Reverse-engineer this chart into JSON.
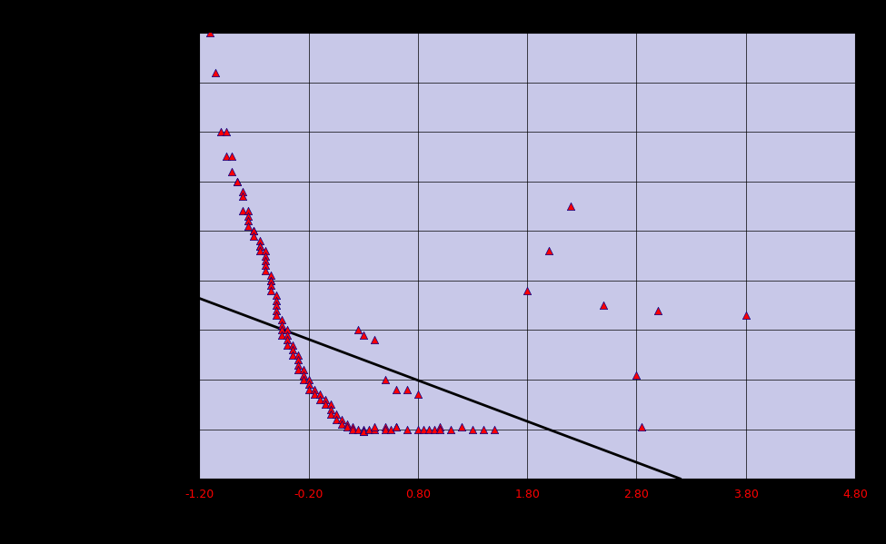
{
  "background_color": "#c8c8e8",
  "plot_bg_color": "#c8c8e8",
  "outer_bg_color": "#000000",
  "xlim": [
    -1.2,
    4.8
  ],
  "ylim": [
    -0.5,
    4.0
  ],
  "xticks": [
    -1.2,
    -0.2,
    0.8,
    1.8,
    2.8,
    3.8,
    4.8
  ],
  "yticks": [
    -0.5,
    0.0,
    0.5,
    1.0,
    1.5,
    2.0,
    2.5,
    3.0,
    3.5,
    4.0
  ],
  "xtick_color": "#ff0000",
  "ytick_color": "#000000",
  "grid_color": "#000000",
  "trend_line": {
    "x_start": -1.2,
    "x_end": 3.2,
    "y_start": 1.32,
    "y_end": -0.5
  },
  "scatter_x": [
    -1.1,
    -1.05,
    -1.0,
    -0.95,
    -0.95,
    -0.9,
    -0.9,
    -0.85,
    -0.85,
    -0.8,
    -0.8,
    -0.8,
    -0.75,
    -0.75,
    -0.75,
    -0.75,
    -0.7,
    -0.7,
    -0.7,
    -0.65,
    -0.65,
    -0.65,
    -0.65,
    -0.6,
    -0.6,
    -0.6,
    -0.6,
    -0.6,
    -0.55,
    -0.55,
    -0.55,
    -0.55,
    -0.55,
    -0.5,
    -0.5,
    -0.5,
    -0.5,
    -0.5,
    -0.45,
    -0.45,
    -0.45,
    -0.45,
    -0.4,
    -0.4,
    -0.4,
    -0.4,
    -0.35,
    -0.35,
    -0.35,
    -0.3,
    -0.3,
    -0.3,
    -0.3,
    -0.25,
    -0.25,
    -0.25,
    -0.2,
    -0.2,
    -0.2,
    -0.15,
    -0.15,
    -0.1,
    -0.1,
    -0.05,
    -0.05,
    0.0,
    0.0,
    0.0,
    0.05,
    0.05,
    0.1,
    0.1,
    0.15,
    0.15,
    0.2,
    0.2,
    0.25,
    0.3,
    0.3,
    0.3,
    0.35,
    0.4,
    0.4,
    0.5,
    0.5,
    0.55,
    0.6,
    0.6,
    0.7,
    0.8,
    0.85,
    0.9,
    0.95,
    1.0,
    1.0,
    1.1,
    1.2,
    1.3,
    1.4,
    1.5,
    1.8,
    2.0,
    2.2,
    2.5,
    2.8,
    2.85,
    3.0,
    3.8,
    0.25,
    0.3,
    0.4,
    0.5,
    0.6,
    0.7,
    0.8
  ],
  "scatter_y": [
    4.0,
    3.6,
    3.0,
    3.0,
    2.75,
    2.75,
    2.6,
    2.5,
    2.5,
    2.4,
    2.35,
    2.2,
    2.2,
    2.15,
    2.1,
    2.05,
    2.0,
    2.0,
    1.95,
    1.9,
    1.85,
    1.85,
    1.8,
    1.8,
    1.75,
    1.7,
    1.65,
    1.6,
    1.55,
    1.5,
    1.5,
    1.45,
    1.4,
    1.35,
    1.3,
    1.25,
    1.2,
    1.15,
    1.1,
    1.05,
    1.0,
    0.95,
    1.0,
    0.95,
    0.9,
    0.85,
    0.85,
    0.8,
    0.75,
    0.75,
    0.7,
    0.65,
    0.6,
    0.6,
    0.55,
    0.5,
    0.5,
    0.45,
    0.4,
    0.4,
    0.35,
    0.35,
    0.3,
    0.3,
    0.25,
    0.25,
    0.2,
    0.15,
    0.15,
    0.1,
    0.1,
    0.05,
    0.05,
    0.02,
    0.02,
    0.0,
    0.0,
    0.0,
    -0.02,
    -0.02,
    0.0,
    0.0,
    0.02,
    0.02,
    0.0,
    0.0,
    0.02,
    0.02,
    0.0,
    0.0,
    0.0,
    0.0,
    0.0,
    0.02,
    0.0,
    0.0,
    0.02,
    0.0,
    0.0,
    0.0,
    1.4,
    1.8,
    2.25,
    1.25,
    0.55,
    0.02,
    1.2,
    1.15,
    1.0,
    0.95,
    0.9,
    0.5,
    0.4,
    0.4,
    0.35
  ],
  "marker_face_color": "#ff0000",
  "marker_edge_color": "#00008b",
  "marker_size": 6,
  "trend_color": "#000000",
  "trend_linewidth": 2.0
}
